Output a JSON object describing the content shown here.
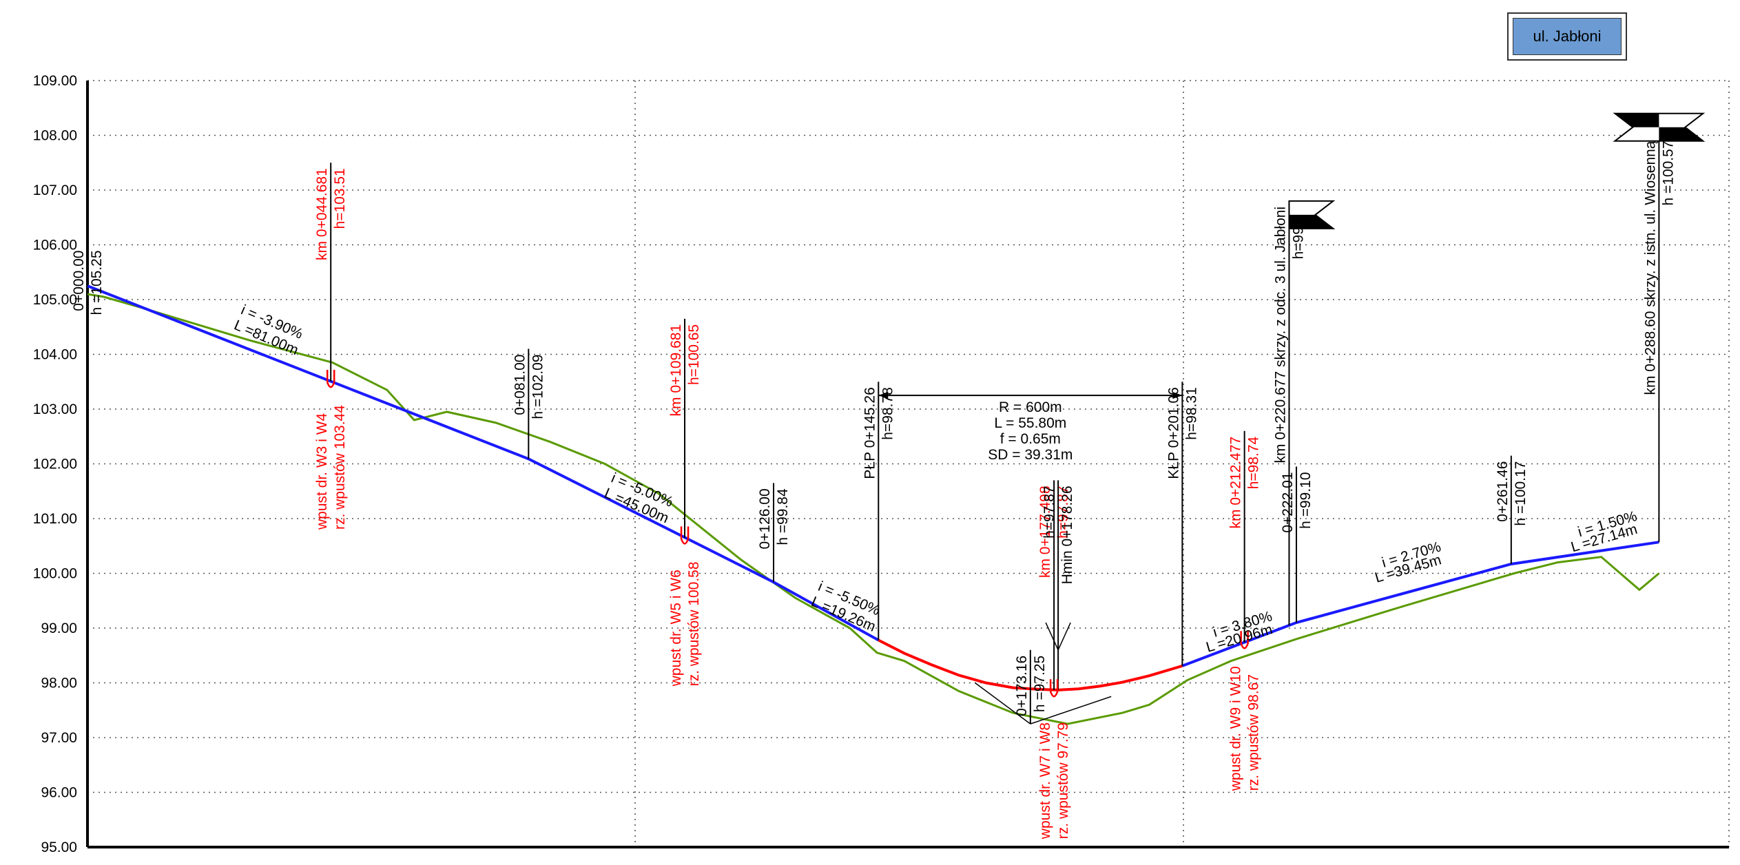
{
  "street_label": "ul. Jabłoni",
  "chart_data": {
    "type": "line",
    "title": "",
    "xlabel": "",
    "ylabel": "",
    "xlim": [
      0,
      290
    ],
    "ylim": [
      95,
      109
    ],
    "y_ticks": [
      "95.00",
      "96.00",
      "97.00",
      "98.00",
      "99.00",
      "100.00",
      "101.00",
      "102.00",
      "103.00",
      "104.00",
      "105.00",
      "106.00",
      "107.00",
      "108.00",
      "109.00"
    ],
    "grid": true,
    "series": [
      {
        "key": "design",
        "color": "#1a1aff",
        "x": [
          0,
          81,
          126,
          145.26
        ],
        "y": [
          105.25,
          102.09,
          99.84,
          98.78
        ]
      },
      {
        "key": "curve",
        "color": "#ff0000",
        "x": [
          145.26,
          150,
          155,
          160,
          165,
          170,
          175,
          178.26,
          182,
          186,
          190,
          195,
          201.06
        ],
        "y": [
          98.78,
          98.54,
          98.33,
          98.14,
          98.0,
          97.91,
          97.88,
          97.87,
          97.89,
          97.94,
          98.01,
          98.13,
          98.31
        ]
      },
      {
        "key": "design2",
        "color": "#1a1aff",
        "x": [
          201.06,
          222.01,
          261.46,
          288.6
        ],
        "y": [
          98.31,
          99.1,
          100.17,
          100.57
        ]
      },
      {
        "key": "terrain",
        "color": "#5a9a00",
        "x": [
          0,
          3,
          10,
          20,
          30,
          45,
          55,
          60,
          66,
          75,
          85,
          95,
          105,
          110,
          120,
          130,
          140,
          145,
          150,
          160,
          170,
          180,
          190,
          195,
          202,
          210,
          222,
          240,
          262,
          270,
          278,
          285,
          288.6
        ],
        "y": [
          105.1,
          105.05,
          104.85,
          104.55,
          104.25,
          103.85,
          103.35,
          102.8,
          102.95,
          102.75,
          102.4,
          102.0,
          101.45,
          101.05,
          100.25,
          99.55,
          99.0,
          98.55,
          98.4,
          97.85,
          97.45,
          97.25,
          97.45,
          97.6,
          98.05,
          98.4,
          98.8,
          99.35,
          100.0,
          100.2,
          100.3,
          99.7,
          100.0
        ]
      }
    ],
    "annotations": [
      {
        "x": 0,
        "y": 105.25,
        "top": 106.0,
        "text_left": "0+000.00",
        "text_right": "h =105.25",
        "color": "black"
      },
      {
        "x": 44.681,
        "y": 103.51,
        "top": 107.5,
        "text_left": "km 0+044.681",
        "text_right": "h=103.51",
        "color": "red"
      },
      {
        "x": 81,
        "y": 102.09,
        "top": 104.1,
        "text_left": "0+081.00",
        "text_right": "h =102.09",
        "color": "black"
      },
      {
        "x": 109.681,
        "y": 100.65,
        "top": 104.65,
        "text_left": "km 0+109.681",
        "text_right": "h=100.65",
        "color": "red"
      },
      {
        "x": 126,
        "y": 99.84,
        "top": 101.65,
        "text_left": "0+126.00",
        "text_right": "h =99.84",
        "color": "black"
      },
      {
        "x": 145.26,
        "y": 98.78,
        "top": 103.5,
        "text_left": "PŁP  0+145.26",
        "text_right": "h=98.78",
        "color": "black"
      },
      {
        "x": 173.16,
        "y": 97.25,
        "top": 98.6,
        "text_left": "0+173.16",
        "text_right": "h =97.25",
        "color": "black"
      },
      {
        "x": 177.498,
        "y": 97.87,
        "top": 101.7,
        "text_left": "km 0+177.498",
        "text_right": "h=97.87",
        "color": "red"
      },
      {
        "x": 178.26,
        "y": 97.87,
        "top": 101.7,
        "text_left": "h=97.87",
        "text_right": "Hmin  0+178.26",
        "color": "black"
      },
      {
        "x": 201.06,
        "y": 98.31,
        "top": 103.5,
        "text_left": "KŁP  0+201.06",
        "text_right": "h=98.31",
        "color": "black"
      },
      {
        "x": 212.477,
        "y": 98.74,
        "top": 102.6,
        "text_left": "km 0+212.477",
        "text_right": "h=98.74",
        "color": "red"
      },
      {
        "x": 220.677,
        "y": 99.05,
        "top": 106.8,
        "text_left": "km 0+220.677 skrzy. z odc. 3 ul. Jabłoni",
        "text_right": "h=99.05",
        "color": "black"
      },
      {
        "x": 222.01,
        "y": 99.1,
        "top": 101.95,
        "text_left": "0+222.01",
        "text_right": "h =99.10",
        "color": "black"
      },
      {
        "x": 261.46,
        "y": 100.17,
        "top": 102.15,
        "text_left": "0+261.46",
        "text_right": "h =100.17",
        "color": "black"
      },
      {
        "x": 288.6,
        "y": 100.57,
        "top": 108.0,
        "text_left": "km 0+288.60 skrzy. z istn. ul. Wiosenną",
        "text_right": "h =100.57",
        "color": "black"
      }
    ],
    "inlets": [
      {
        "x": 44.681,
        "y": 103.44,
        "line1": "wpust dr. W3 i W4",
        "line2": "rz. wpustów 103.44"
      },
      {
        "x": 109.681,
        "y": 100.58,
        "line1": "wpust dr. W5 i W6",
        "line2": "rz. wpustów 100.58"
      },
      {
        "x": 177.498,
        "y": 97.79,
        "line1": "wpust dr. W7 i W8",
        "line2": "rz. wpustów 97.79"
      },
      {
        "x": 212.477,
        "y": 98.67,
        "line1": "wpust dr. W9 i W10",
        "line2": "rz. wpustów 98.67"
      }
    ],
    "slopes": [
      {
        "x": 28,
        "y": 104.42,
        "i": "i = -3.90%",
        "L": "L =81.00m"
      },
      {
        "x": 96,
        "y": 101.35,
        "i": "i = -5.00%",
        "L": "L =45.00m"
      },
      {
        "x": 134,
        "y": 99.37,
        "i": "i = -5.50%",
        "L": "L =19.26m"
      },
      {
        "x": 207,
        "y": 98.51,
        "i": "i = 3.80%",
        "L": "L =20.96m"
      },
      {
        "x": 238,
        "y": 99.78,
        "i": "i = 2.70%",
        "L": "L =39.45m"
      },
      {
        "x": 274,
        "y": 100.34,
        "i": "i = 1.50%",
        "L": "L =27.14m"
      }
    ],
    "curve": {
      "x_start": 145.26,
      "x_end": 201.06,
      "y": 103.25,
      "lines": [
        "R = 600m",
        "L = 55.80m",
        "f = 0.65m",
        "SD = 39.31m"
      ]
    }
  }
}
